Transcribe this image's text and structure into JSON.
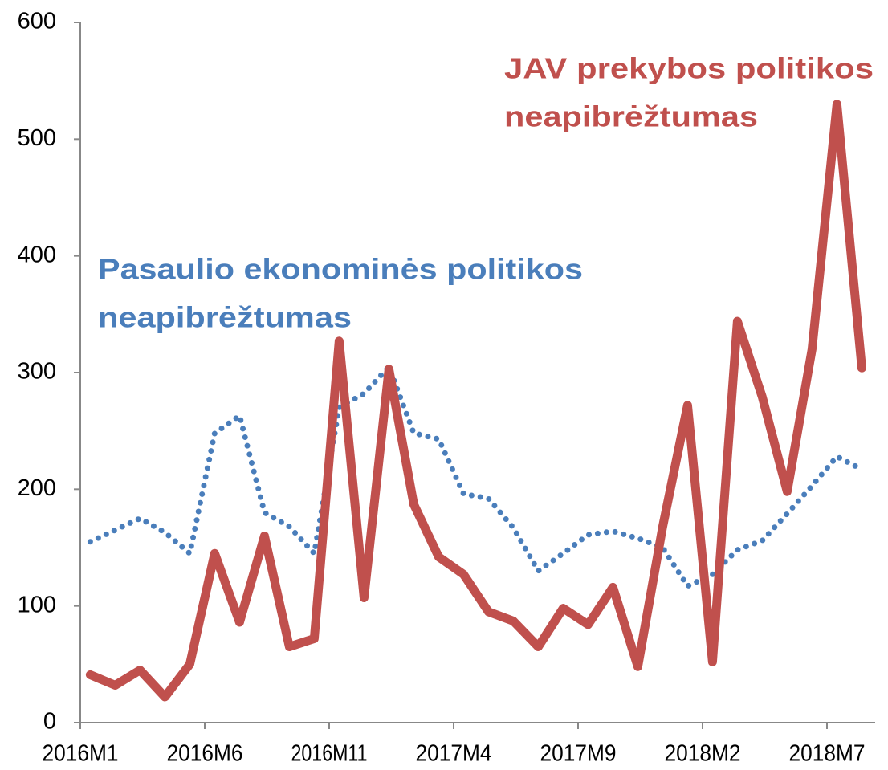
{
  "chart_data": {
    "type": "line",
    "categories": [
      "2016M1",
      null,
      null,
      null,
      null,
      "2016M6",
      null,
      null,
      null,
      null,
      "2016M11",
      null,
      null,
      null,
      null,
      "2017M4",
      null,
      null,
      null,
      null,
      "2017M9",
      null,
      null,
      null,
      null,
      "2018M2",
      null,
      null,
      null,
      null,
      "2018M7",
      null
    ],
    "series": [
      {
        "name_lines": [
          "JAV prekybos politikos",
          "neapibrėžtumas"
        ],
        "color": "#c0504d",
        "style": "solid",
        "values": [
          41,
          32,
          45,
          22,
          50,
          145,
          86,
          160,
          65,
          72,
          327,
          107,
          303,
          187,
          142,
          127,
          95,
          87,
          65,
          98,
          84,
          116,
          48,
          168,
          272,
          52,
          344,
          279,
          198,
          320,
          530,
          304
        ]
      },
      {
        "name_lines": [
          "Pasaulio ekonominės politikos",
          "neapibrėžtumas"
        ],
        "color": "#4a7ebb",
        "style": "dotted",
        "values": [
          155,
          165,
          175,
          163,
          145,
          248,
          263,
          180,
          168,
          145,
          270,
          282,
          305,
          248,
          243,
          196,
          192,
          167,
          130,
          145,
          161,
          164,
          158,
          150,
          117,
          127,
          148,
          156,
          179,
          203,
          228,
          217
        ]
      }
    ],
    "ylim": [
      0,
      600
    ],
    "yticks": [
      0,
      100,
      200,
      300,
      400,
      500,
      600
    ]
  }
}
